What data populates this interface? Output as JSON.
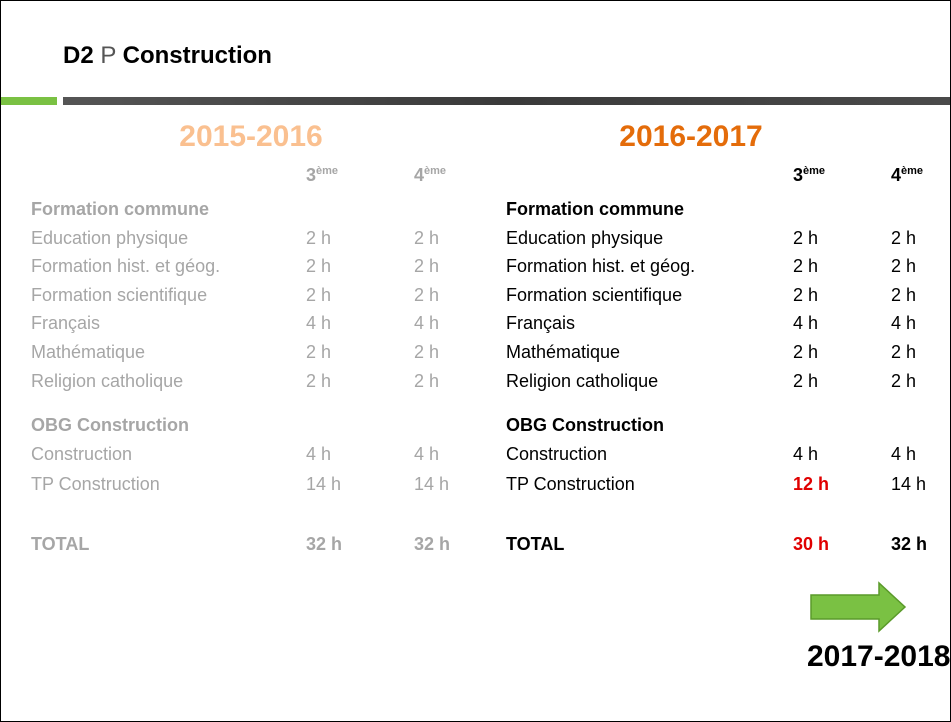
{
  "title": {
    "code": "D2",
    "letter": "P",
    "name": "Construction"
  },
  "panels": [
    {
      "year": "2015-2016",
      "year_color": "#fac090",
      "text_color": "#a6a6a6",
      "columns": [
        {
          "num": "3",
          "sup": "ème"
        },
        {
          "num": "4",
          "sup": "ème"
        }
      ],
      "sections": [
        {
          "heading": "Formation commune",
          "rows": [
            [
              "Education physique",
              "2 h",
              "2 h"
            ],
            [
              "Formation hist. et géog.",
              "2 h",
              "2 h"
            ],
            [
              "Formation scientifique",
              "2 h",
              "2 h"
            ],
            [
              "Français",
              "4 h",
              "4 h"
            ],
            [
              "Mathématique",
              "2 h",
              "2 h"
            ],
            [
              "Religion catholique",
              "2 h",
              "2 h"
            ]
          ]
        },
        {
          "heading": "OBG Construction",
          "rows": [
            [
              "Construction",
              "4 h",
              "4 h"
            ],
            [
              "TP Construction",
              "14 h",
              "14 h"
            ]
          ]
        }
      ],
      "total": [
        "TOTAL",
        "32 h",
        "32 h"
      ]
    },
    {
      "year": "2016-2017",
      "year_color": "#e46c0a",
      "text_color": "#000000",
      "columns": [
        {
          "num": "3",
          "sup": "ème"
        },
        {
          "num": "4",
          "sup": "ème"
        }
      ],
      "sections": [
        {
          "heading": "Formation commune",
          "rows": [
            [
              "Education physique",
              "2 h",
              "2 h"
            ],
            [
              "Formation hist. et géog.",
              "2 h",
              "2 h"
            ],
            [
              "Formation scientifique",
              "2 h",
              "2 h"
            ],
            [
              "Français",
              "4 h",
              "4 h"
            ],
            [
              "Mathématique",
              "2 h",
              "2 h"
            ],
            [
              "Religion catholique",
              "2 h",
              "2 h"
            ]
          ]
        },
        {
          "heading": "OBG Construction",
          "rows": [
            [
              "Construction",
              "4 h",
              "4 h"
            ],
            [
              "TP Construction",
              {
                "text": "12 h",
                "color": "#e00000"
              },
              "14 h"
            ]
          ]
        }
      ],
      "total": [
        "TOTAL",
        {
          "text": "30 h",
          "color": "#e00000"
        },
        "32 h"
      ]
    }
  ],
  "next_year": "2017-2018"
}
